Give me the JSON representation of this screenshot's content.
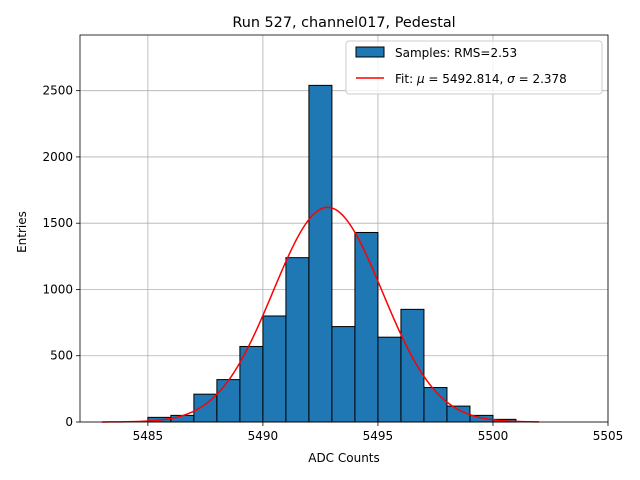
{
  "chart_data": {
    "type": "histogram",
    "title": "Run 527, channel017, Pedestal",
    "xlabel": "ADC Counts",
    "ylabel": "Entries",
    "xlim": [
      5482.05,
      5505.0
    ],
    "ylim": [
      0,
      2920
    ],
    "xticks": [
      5485,
      5490,
      5495,
      5500,
      5505
    ],
    "yticks": [
      0,
      500,
      1000,
      1500,
      2000,
      2500
    ],
    "grid": true,
    "bins": [
      {
        "left": 5485.0,
        "right": 5486.0,
        "value": 35
      },
      {
        "left": 5486.0,
        "right": 5487.0,
        "value": 50
      },
      {
        "left": 5487.0,
        "right": 5488.0,
        "value": 210
      },
      {
        "left": 5488.0,
        "right": 5489.0,
        "value": 320
      },
      {
        "left": 5489.0,
        "right": 5490.0,
        "value": 570
      },
      {
        "left": 5490.0,
        "right": 5491.0,
        "value": 800
      },
      {
        "left": 5491.0,
        "right": 5492.0,
        "value": 1240
      },
      {
        "left": 5492.0,
        "right": 5493.0,
        "value": 2540
      },
      {
        "left": 5493.0,
        "right": 5494.0,
        "value": 720
      },
      {
        "left": 5494.0,
        "right": 5495.0,
        "value": 1430
      },
      {
        "left": 5495.0,
        "right": 5496.0,
        "value": 640
      },
      {
        "left": 5496.0,
        "right": 5497.0,
        "value": 850
      },
      {
        "left": 5497.0,
        "right": 5498.0,
        "value": 260
      },
      {
        "left": 5498.0,
        "right": 5499.0,
        "value": 120
      },
      {
        "left": 5499.0,
        "right": 5500.0,
        "value": 50
      },
      {
        "left": 5500.0,
        "right": 5501.0,
        "value": 20
      }
    ],
    "fit": {
      "mu": 5492.814,
      "sigma": 2.378,
      "peak": 1620,
      "x_range": [
        5483.0,
        5502.0
      ]
    },
    "legend": {
      "position": "top-right",
      "entries": [
        {
          "label": "Samples: RMS=2.53",
          "kind": "patch",
          "color": "#1f77b4"
        },
        {
          "label_parts": {
            "prefix": "Fit: ",
            "mu_symbol": "μ",
            "mu_text": " = 5492.814, ",
            "sigma_symbol": "σ",
            "sigma_text": " = 2.378"
          },
          "kind": "line",
          "color": "#ff0000"
        }
      ]
    },
    "colors": {
      "bar": "#1f77b4",
      "bar_edge": "#000000",
      "fit": "#ff0000",
      "grid": "#b0b0b0"
    }
  }
}
